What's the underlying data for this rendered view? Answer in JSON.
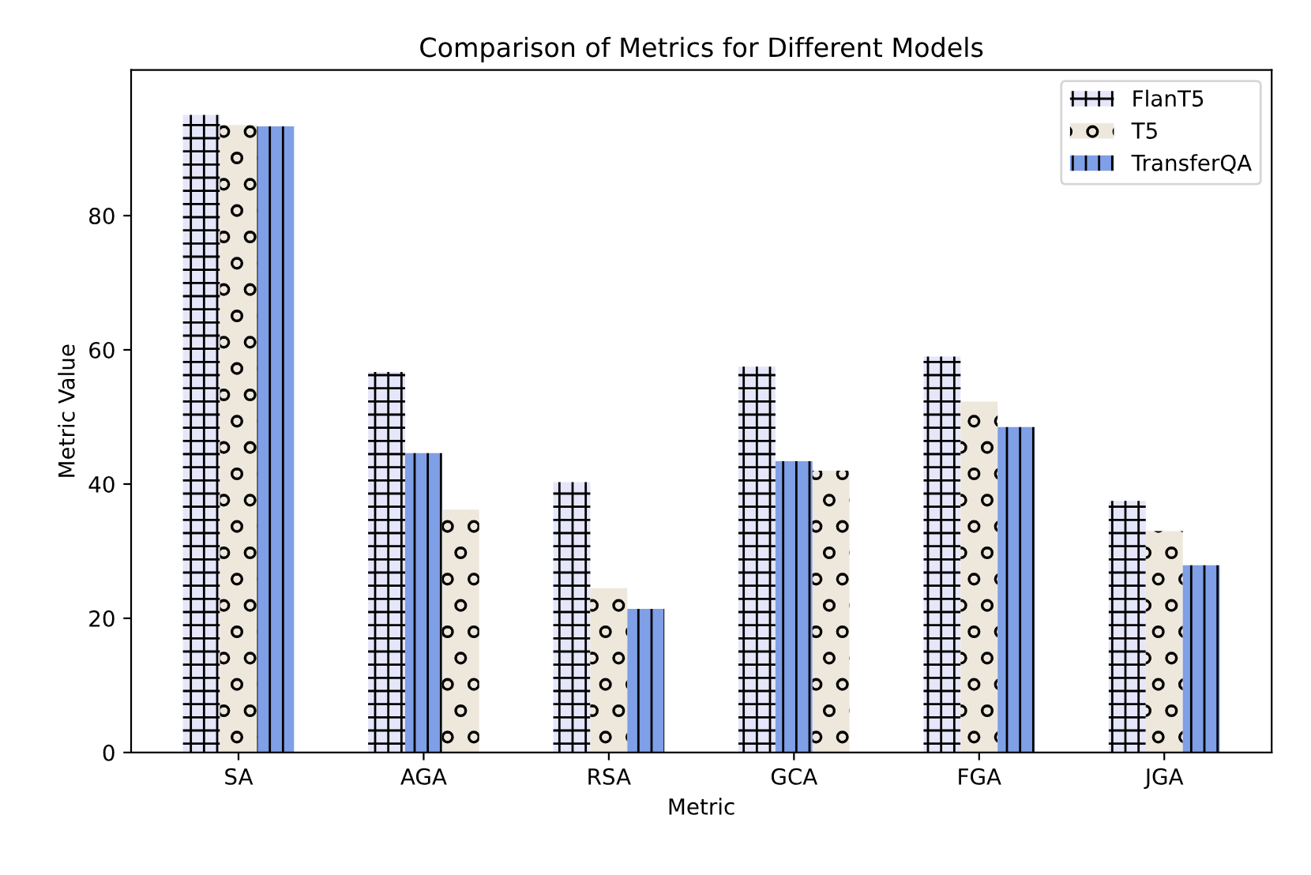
{
  "chart_data": {
    "type": "bar",
    "title": "Comparison of Metrics for Different Models",
    "xlabel": "Metric",
    "ylabel": "Metric Value",
    "categories": [
      "SA",
      "AGA",
      "RSA",
      "GCA",
      "FGA",
      "JGA"
    ],
    "series": [
      {
        "name": "FlanT5",
        "color": "#e6e6fa",
        "values": [
          95,
          56.7,
          40.3,
          57.5,
          59,
          37.5
        ]
      },
      {
        "name": "T5",
        "color": "#eee8dc",
        "values": [
          93.5,
          36.2,
          24.5,
          42,
          52.3,
          33
        ]
      },
      {
        "name": "TransferQA",
        "color": "#7f9fe6",
        "values": [
          93.3,
          44.6,
          21.4,
          43.4,
          48.5,
          27.9
        ]
      }
    ],
    "ylim": [
      0,
      101.7
    ],
    "yticks": [
      0,
      20,
      40,
      60,
      80
    ],
    "legend": "top right",
    "grid": false
  }
}
